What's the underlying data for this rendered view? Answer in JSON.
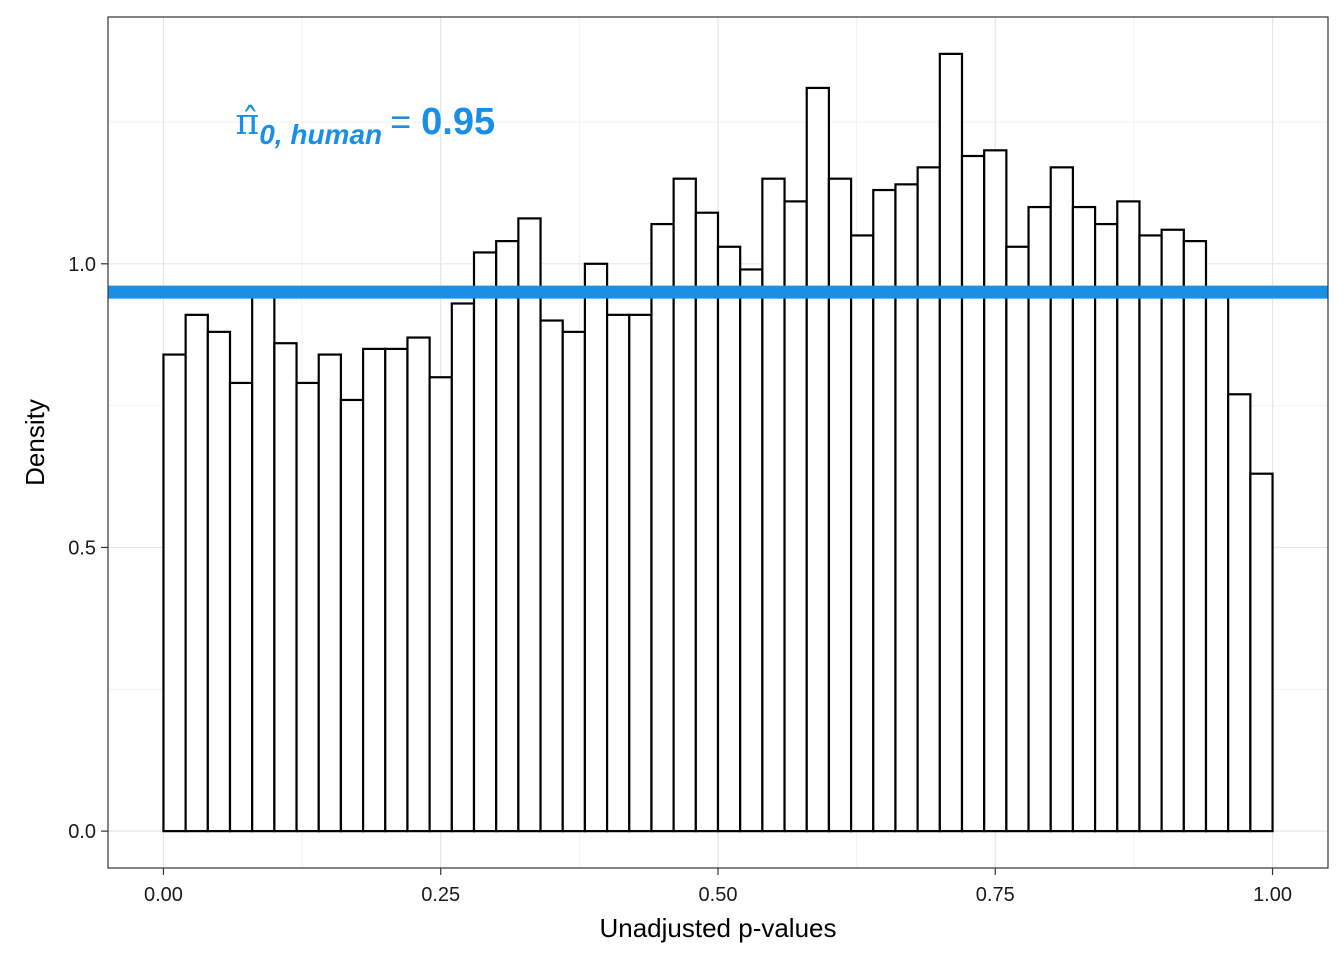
{
  "chart_data": {
    "type": "bar",
    "subtype": "histogram",
    "xlabel": "Unadjusted p-values",
    "ylabel": "Density",
    "xlim": [
      -0.05,
      1.05
    ],
    "ylim": [
      -0.065,
      1.435
    ],
    "x_ticks": [
      0.0,
      0.25,
      0.5,
      0.75,
      1.0
    ],
    "x_tick_labels": [
      "0.00",
      "0.25",
      "0.50",
      "0.75",
      "1.00"
    ],
    "y_ticks": [
      0.0,
      0.5,
      1.0
    ],
    "y_tick_labels": [
      "0.0",
      "0.5",
      "1.0"
    ],
    "grid": true,
    "bin_width": 0.02,
    "bin_start": 0.0,
    "values": [
      0.84,
      0.91,
      0.88,
      0.79,
      0.95,
      0.86,
      0.79,
      0.84,
      0.76,
      0.85,
      0.85,
      0.87,
      0.8,
      0.93,
      1.02,
      1.04,
      1.08,
      0.9,
      0.88,
      1.0,
      0.91,
      0.91,
      1.07,
      1.15,
      1.09,
      1.03,
      0.99,
      1.15,
      1.11,
      1.31,
      1.15,
      1.05,
      1.13,
      1.14,
      1.17,
      1.37,
      1.19,
      1.2,
      1.03,
      1.1,
      1.17,
      1.1,
      1.07,
      1.11,
      1.05,
      1.06,
      1.04,
      0.95,
      0.77,
      0.63
    ],
    "hline": {
      "y": 0.95,
      "color": "#1990E5"
    },
    "annotation": {
      "symbol": "π̂",
      "subscript": "0, human",
      "equals": "=",
      "value": "0.95",
      "x": 0.065,
      "y": 1.25,
      "color": "#1990E5"
    }
  }
}
